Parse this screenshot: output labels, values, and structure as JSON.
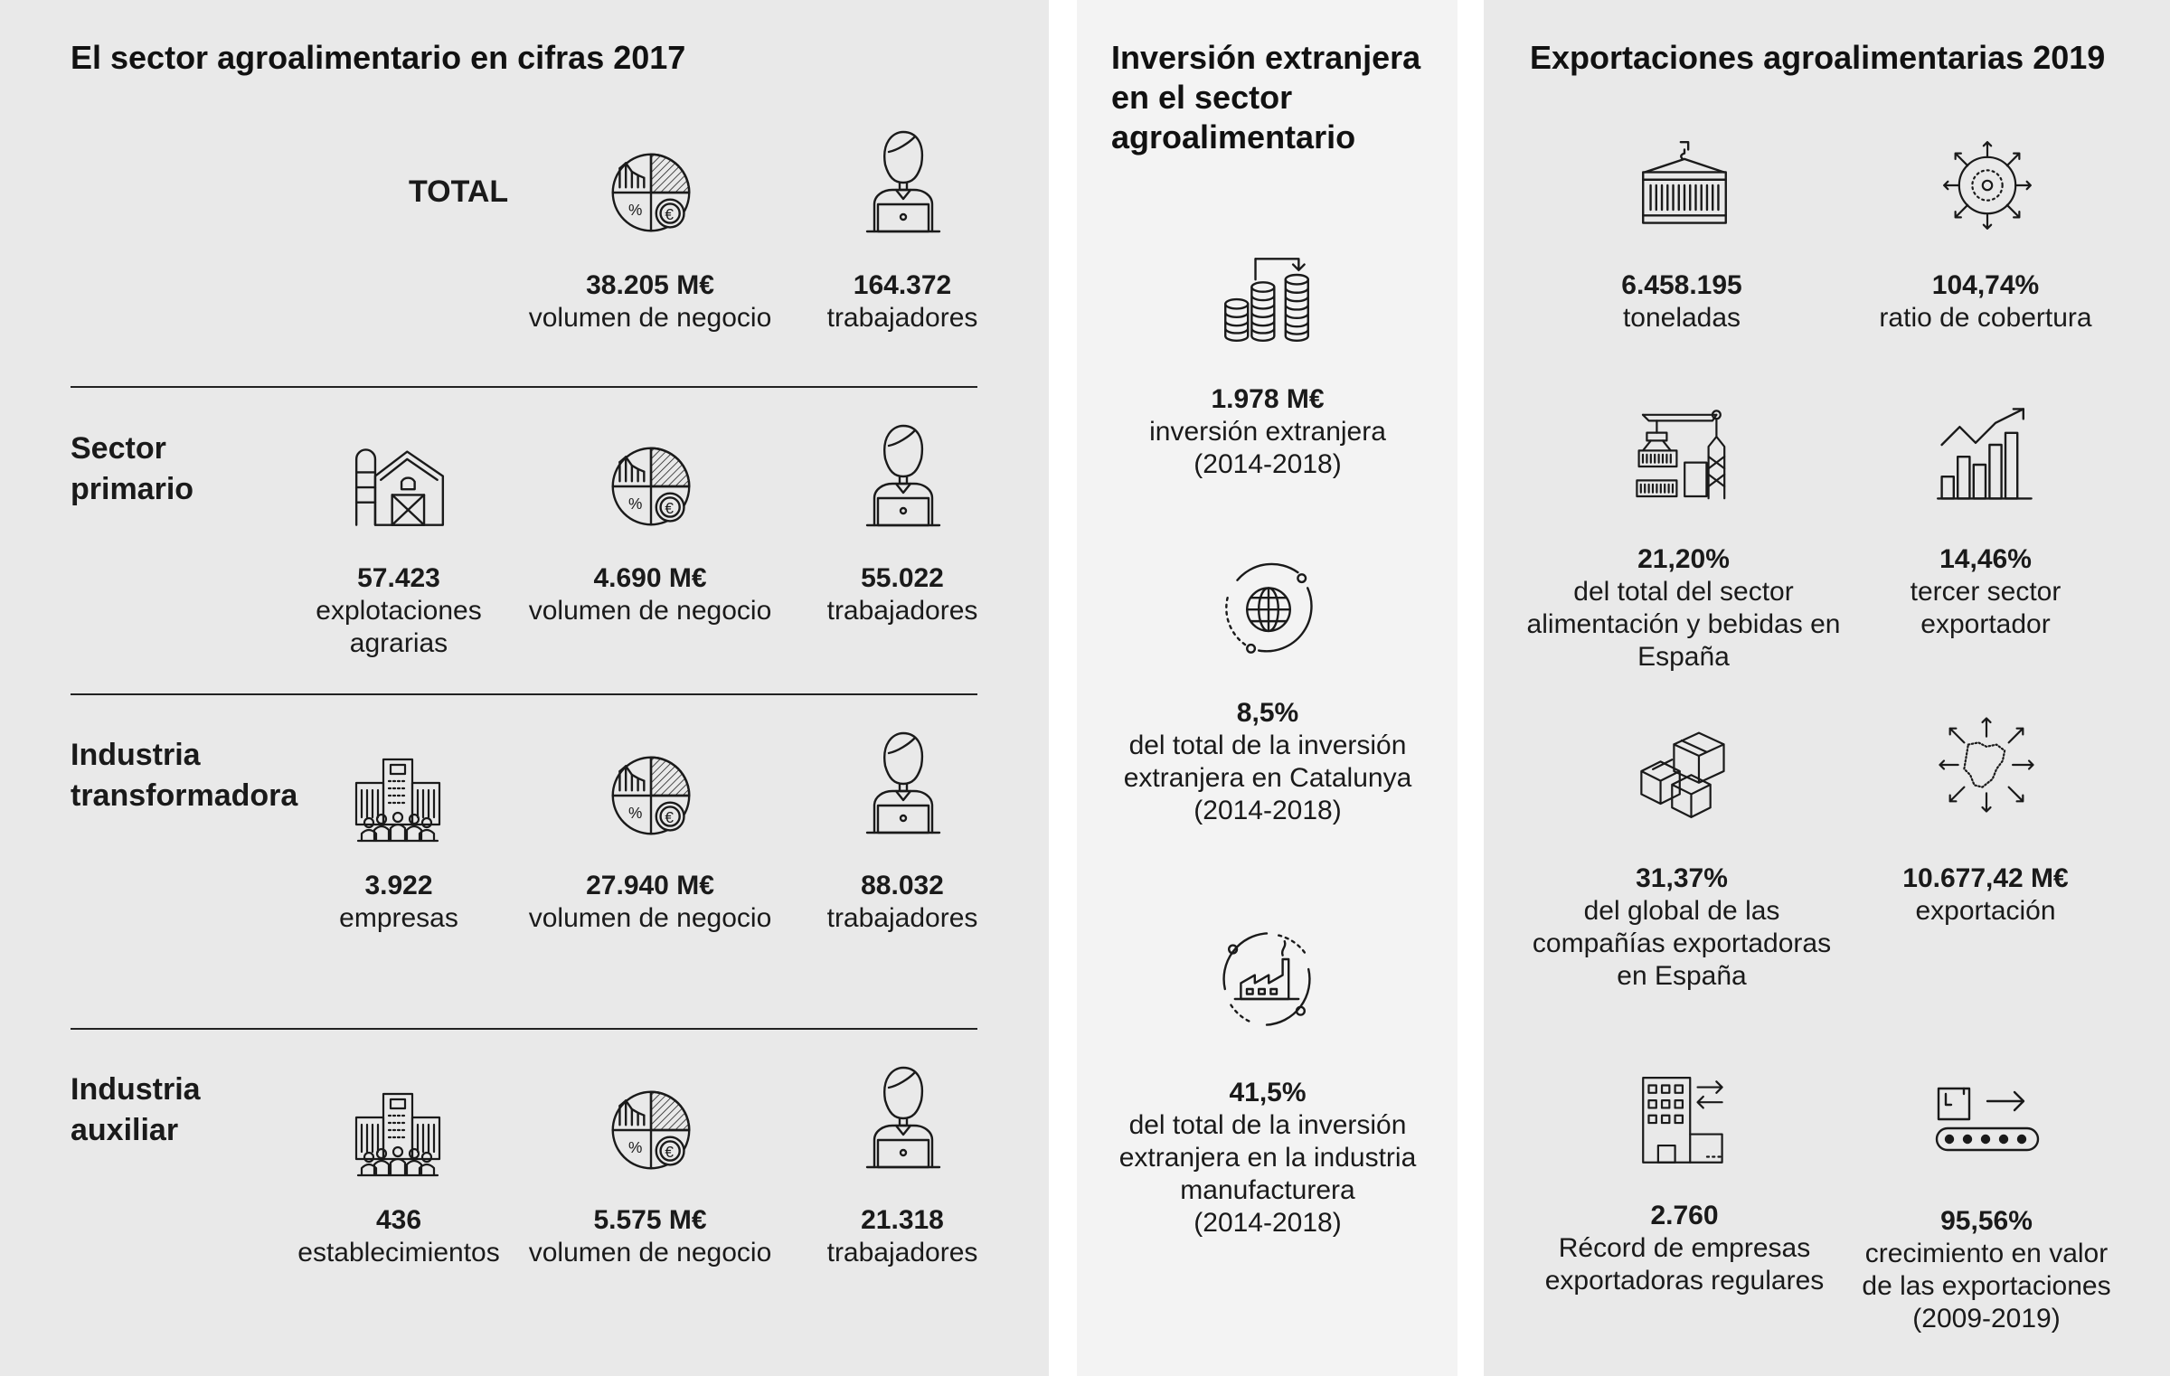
{
  "panel1": {
    "title": "El sector agroalimentario en cifras 2017",
    "total_label": "TOTAL",
    "rows": [
      {
        "label_lines": [],
        "stats": [
          {
            "value": "38.205 M€",
            "lines": [
              "volumen de negocio"
            ],
            "icon": "business-volume-icon"
          },
          {
            "value": "164.372",
            "lines": [
              "trabajadores"
            ],
            "icon": "worker-icon"
          }
        ]
      },
      {
        "label_lines": [
          "Sector",
          "primario"
        ],
        "stats": [
          {
            "value": "57.423",
            "lines": [
              "explotaciones",
              "agrarias"
            ],
            "icon": "farm-barn-icon"
          },
          {
            "value": "4.690 M€",
            "lines": [
              "volumen de negocio"
            ],
            "icon": "business-volume-icon"
          },
          {
            "value": "55.022",
            "lines": [
              "trabajadores"
            ],
            "icon": "worker-icon"
          }
        ]
      },
      {
        "label_lines": [
          "Industria",
          "transformadora"
        ],
        "stats": [
          {
            "value": "3.922",
            "lines": [
              "empresas"
            ],
            "icon": "companies-building-icon"
          },
          {
            "value": "27.940 M€",
            "lines": [
              "volumen de negocio"
            ],
            "icon": "business-volume-icon"
          },
          {
            "value": "88.032",
            "lines": [
              "trabajadores"
            ],
            "icon": "worker-icon"
          }
        ]
      },
      {
        "label_lines": [
          "Industria",
          "auxiliar"
        ],
        "stats": [
          {
            "value": "436",
            "lines": [
              "establecimientos"
            ],
            "icon": "companies-building-icon"
          },
          {
            "value": "5.575 M€",
            "lines": [
              "volumen de negocio"
            ],
            "icon": "business-volume-icon"
          },
          {
            "value": "21.318",
            "lines": [
              "trabajadores"
            ],
            "icon": "worker-icon"
          }
        ]
      }
    ]
  },
  "panel2": {
    "title_lines": [
      "Inversión extranjera",
      "en el sector",
      "agroalimentario"
    ],
    "stats": [
      {
        "value": "1.978 M€",
        "lines": [
          "inversión extranjera",
          "(2014-2018)"
        ],
        "icon": "coin-stacks-icon"
      },
      {
        "value": "8,5%",
        "lines": [
          "del total de la inversión",
          "extranjera en Catalunya",
          "(2014-2018)"
        ],
        "icon": "globe-cycle-icon"
      },
      {
        "value": "41,5%",
        "lines": [
          "del total de la inversión",
          "extranjera en la industria",
          "manufacturera",
          "(2014-2018)"
        ],
        "icon": "factory-cycle-icon"
      }
    ]
  },
  "panel3": {
    "title": "Exportaciones agroalimentarias 2019",
    "stats": [
      {
        "value": "6.458.195",
        "lines": [
          "toneladas"
        ],
        "icon": "shipping-container-icon"
      },
      {
        "value": "104,74%",
        "lines": [
          "ratio de cobertura"
        ],
        "icon": "coverage-radial-icon"
      },
      {
        "value": "21,20%",
        "lines": [
          "del total del sector",
          "alimentación y bebidas en",
          "España"
        ],
        "icon": "port-crane-icon"
      },
      {
        "value": "14,46%",
        "lines": [
          "tercer sector",
          "exportador"
        ],
        "icon": "growth-bar-chart-icon"
      },
      {
        "value": "31,37%",
        "lines": [
          "del global de las",
          "compañías exportadoras",
          "en España"
        ],
        "icon": "boxes-icon"
      },
      {
        "value": "10.677,42 M€",
        "lines": [
          "exportación"
        ],
        "icon": "catalonia-map-arrows-icon"
      },
      {
        "value": "2.760",
        "lines": [
          "Récord de empresas",
          "exportadoras regulares"
        ],
        "icon": "office-building-exchange-icon"
      },
      {
        "value": "95,56%",
        "lines": [
          "crecimiento en valor",
          "de las exportaciones",
          "(2009-2019)"
        ],
        "icon": "conveyor-belt-icon"
      }
    ]
  }
}
